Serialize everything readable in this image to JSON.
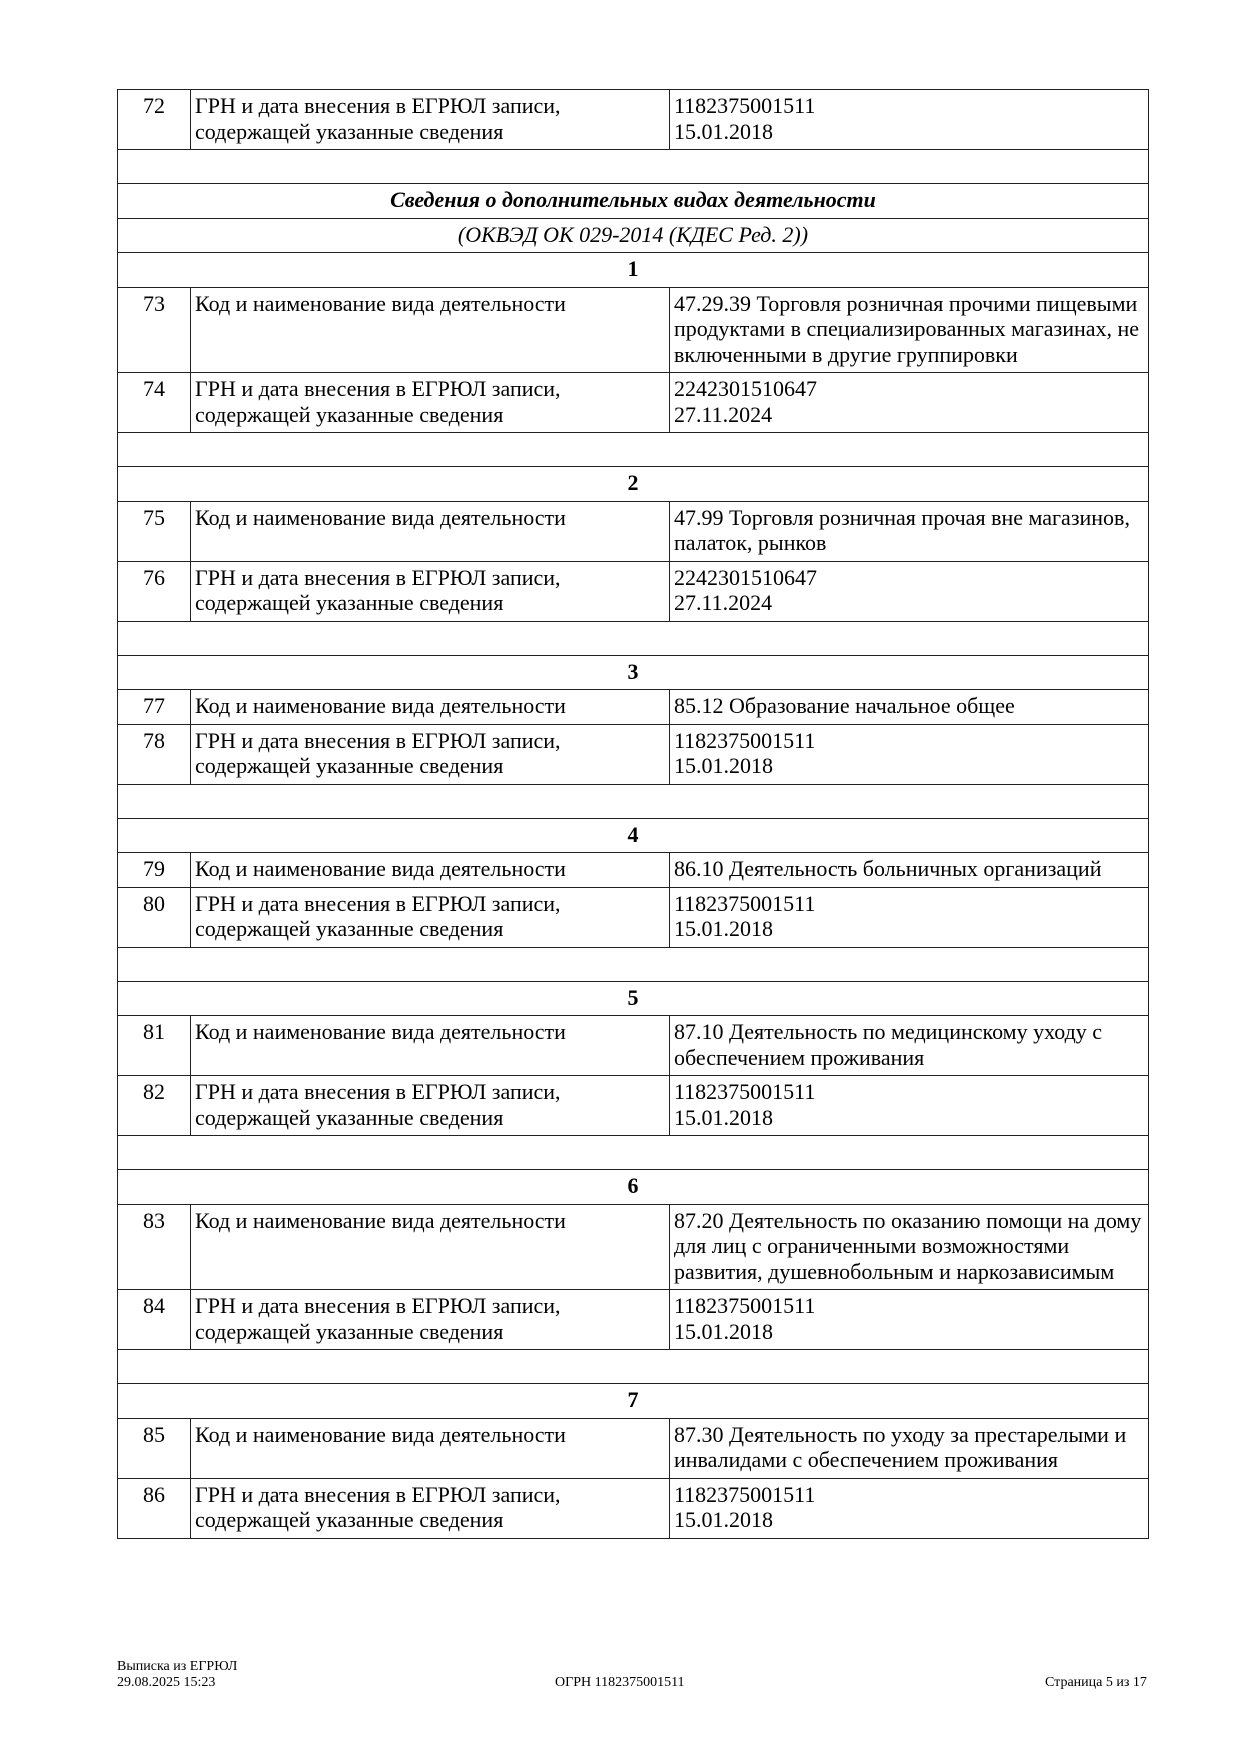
{
  "first_row": {
    "num": "72",
    "label": "ГРН и дата внесения в ЕГРЮЛ записи, содержащей указанные сведения",
    "value": "1182375001511\n15.01.2018"
  },
  "section": {
    "title": "Сведения о дополнительных видах деятельности",
    "subtitle": "(ОКВЭД ОК 029-2014 (КДЕС Ред. 2))"
  },
  "groups": [
    {
      "n": "1",
      "rows": [
        {
          "num": "73",
          "label": "Код и наименование вида деятельности",
          "value": "47.29.39 Торговля розничная прочими пищевыми продуктами в специализированных магазинах, не включенными в другие группировки"
        },
        {
          "num": "74",
          "label": "ГРН и дата внесения в ЕГРЮЛ записи, содержащей указанные сведения",
          "value": "2242301510647\n27.11.2024"
        }
      ]
    },
    {
      "n": "2",
      "rows": [
        {
          "num": "75",
          "label": "Код и наименование вида деятельности",
          "value": "47.99 Торговля розничная прочая вне магазинов, палаток, рынков"
        },
        {
          "num": "76",
          "label": "ГРН и дата внесения в ЕГРЮЛ записи, содержащей указанные сведения",
          "value": "2242301510647\n27.11.2024"
        }
      ]
    },
    {
      "n": "3",
      "rows": [
        {
          "num": "77",
          "label": "Код и наименование вида деятельности",
          "value": "85.12 Образование начальное общее"
        },
        {
          "num": "78",
          "label": "ГРН и дата внесения в ЕГРЮЛ записи, содержащей указанные сведения",
          "value": "1182375001511\n15.01.2018"
        }
      ]
    },
    {
      "n": "4",
      "rows": [
        {
          "num": "79",
          "label": "Код и наименование вида деятельности",
          "value": "86.10 Деятельность больничных организаций"
        },
        {
          "num": "80",
          "label": "ГРН и дата внесения в ЕГРЮЛ записи, содержащей указанные сведения",
          "value": "1182375001511\n15.01.2018"
        }
      ]
    },
    {
      "n": "5",
      "rows": [
        {
          "num": "81",
          "label": "Код и наименование вида деятельности",
          "value": "87.10 Деятельность по медицинскому уходу с обеспечением проживания"
        },
        {
          "num": "82",
          "label": "ГРН и дата внесения в ЕГРЮЛ записи, содержащей указанные сведения",
          "value": "1182375001511\n15.01.2018"
        }
      ]
    },
    {
      "n": "6",
      "rows": [
        {
          "num": "83",
          "label": "Код и наименование вида деятельности",
          "value": "87.20 Деятельность по оказанию помощи на дому для лиц с ограниченными возможностями развития, душевнобольным и наркозависимым"
        },
        {
          "num": "84",
          "label": "ГРН и дата внесения в ЕГРЮЛ записи, содержащей указанные сведения",
          "value": "1182375001511\n15.01.2018"
        }
      ]
    },
    {
      "n": "7",
      "rows": [
        {
          "num": "85",
          "label": "Код и наименование вида деятельности",
          "value": "87.30 Деятельность по уходу за престарелыми и инвалидами с обеспечением проживания"
        },
        {
          "num": "86",
          "label": "ГРН и дата внесения в ЕГРЮЛ записи, содержащей указанные сведения",
          "value": "1182375001511\n15.01.2018"
        }
      ]
    }
  ],
  "footer": {
    "doc_name": "Выписка из ЕГРЮЛ",
    "datetime": "29.08.2025 15:23",
    "ogrn": "ОГРН 1182375001511",
    "page": "Страница 5 из 17"
  }
}
